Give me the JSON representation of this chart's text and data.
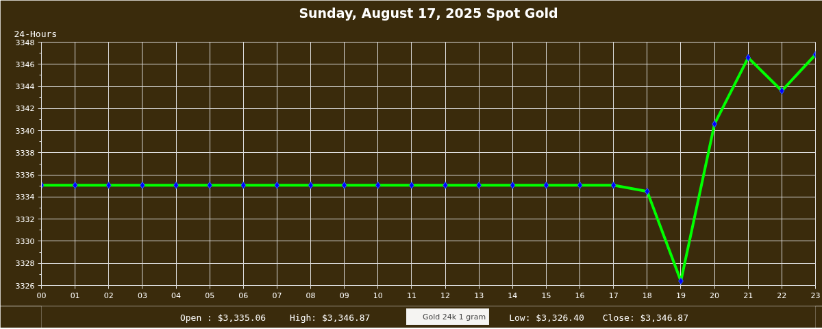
{
  "chart_data": {
    "type": "line",
    "title": "Sunday, August 17, 2025 Spot Gold",
    "subtitle": "24-Hours",
    "x": [
      0,
      1,
      2,
      3,
      4,
      5,
      6,
      7,
      8,
      9,
      10,
      11,
      12,
      13,
      14,
      15,
      16,
      17,
      18,
      19,
      20,
      21,
      22,
      23
    ],
    "xlim": [
      0,
      23
    ],
    "xticks": [
      {
        "value": 0,
        "label": "00"
      },
      {
        "value": 1,
        "label": "01"
      },
      {
        "value": 2,
        "label": "02"
      },
      {
        "value": 3,
        "label": "03"
      },
      {
        "value": 4,
        "label": "04"
      },
      {
        "value": 5,
        "label": "05"
      },
      {
        "value": 6,
        "label": "06"
      },
      {
        "value": 7,
        "label": "07"
      },
      {
        "value": 8,
        "label": "08"
      },
      {
        "value": 9,
        "label": "09"
      },
      {
        "value": 10,
        "label": "10"
      },
      {
        "value": 11,
        "label": "11"
      },
      {
        "value": 12,
        "label": "12"
      },
      {
        "value": 13,
        "label": "13"
      },
      {
        "value": 14,
        "label": "14"
      },
      {
        "value": 15,
        "label": "15"
      },
      {
        "value": 16,
        "label": "16"
      },
      {
        "value": 17,
        "label": "17"
      },
      {
        "value": 18,
        "label": "18"
      },
      {
        "value": 19,
        "label": "19"
      },
      {
        "value": 20,
        "label": "20"
      },
      {
        "value": 21,
        "label": "21"
      },
      {
        "value": 22,
        "label": "22"
      },
      {
        "value": 23,
        "label": "23"
      }
    ],
    "ylim": [
      3326,
      3348
    ],
    "yticks": [
      3326,
      {
        "value": 3327,
        "label": null
      },
      3328,
      {
        "value": 3329,
        "label": null
      },
      3330,
      {
        "value": 3331,
        "label": null
      },
      3332,
      {
        "value": 3333,
        "label": null
      },
      3334,
      {
        "value": 3335,
        "label": null
      },
      3336,
      {
        "value": 3337,
        "label": null
      },
      3338,
      {
        "value": 3339,
        "label": null
      },
      3340,
      {
        "value": 3341,
        "label": null
      },
      3342,
      {
        "value": 3343,
        "label": null
      },
      3344,
      {
        "value": 3345,
        "label": null
      },
      3346,
      {
        "value": 3347,
        "label": null
      },
      3348
    ],
    "series": [
      {
        "name": "Gold 24k 1 gram",
        "color": "#00ff00",
        "values": [
          3335.06,
          3335.06,
          3335.06,
          3335.06,
          3335.06,
          3335.06,
          3335.06,
          3335.06,
          3335.06,
          3335.06,
          3335.06,
          3335.06,
          3335.06,
          3335.06,
          3335.06,
          3335.06,
          3335.06,
          3335.06,
          3334.5,
          3326.4,
          3340.6,
          3346.6,
          3343.6,
          3346.87
        ]
      }
    ],
    "marker": "diamond",
    "grid": true,
    "legend": "bottom",
    "annotations": [
      "Open : $3,335.06",
      "High: $3,346.87",
      "Low: $3,326.40",
      "Close: $3,346.87"
    ]
  }
}
